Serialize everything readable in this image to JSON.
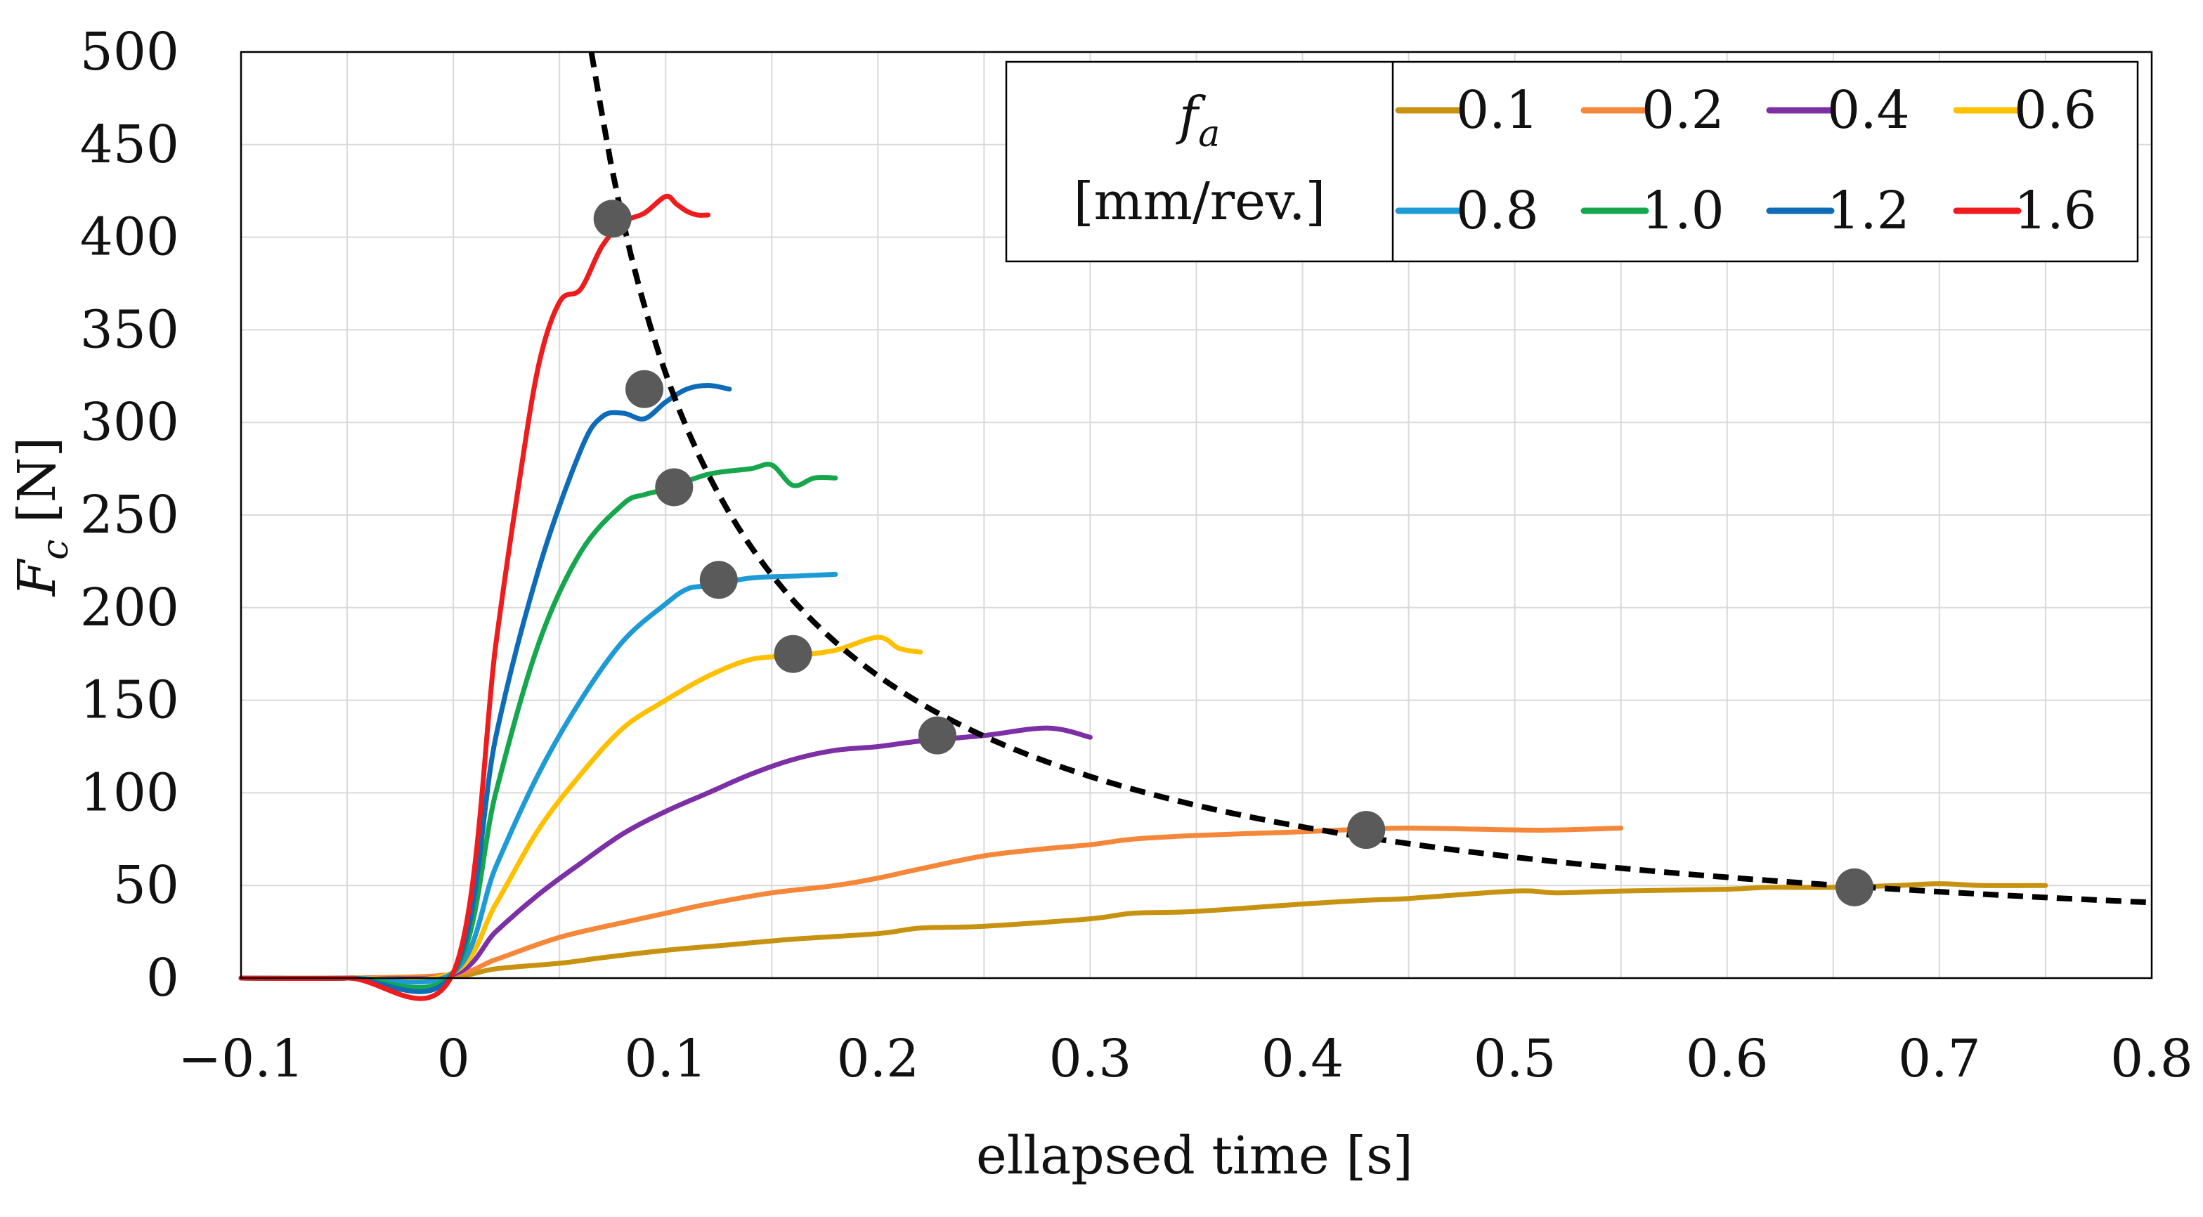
{
  "chart_data": {
    "type": "line",
    "title": "",
    "xlabel": "ellapsed time [s]",
    "ylabel": "F",
    "ylabel_sub": "c",
    "ylabel_unit": " [N]",
    "xlim": [
      -0.1,
      0.8
    ],
    "ylim": [
      0,
      500
    ],
    "xticks": [
      -0.1,
      0,
      0.1,
      0.2,
      0.3,
      0.4,
      0.5,
      0.6,
      0.7,
      0.8
    ],
    "xtick_labels": [
      "−0.1",
      "0",
      "0.1",
      "0.2",
      "0.3",
      "0.4",
      "0.5",
      "0.6",
      "0.7",
      "0.8"
    ],
    "yticks": [
      0,
      50,
      100,
      150,
      200,
      250,
      300,
      350,
      400,
      450,
      500
    ],
    "ytick_labels": [
      "0",
      "50",
      "100",
      "150",
      "200",
      "250",
      "300",
      "350",
      "400",
      "450",
      "500"
    ],
    "grid": true,
    "legend": {
      "placement": "top-right",
      "title_main": "f",
      "title_sub": "a",
      "title_unit": "[mm/rev.]"
    },
    "series": [
      {
        "name": "0.1",
        "color": "#c89211",
        "x": [
          -0.1,
          -0.05,
          0,
          0.02,
          0.05,
          0.07,
          0.1,
          0.13,
          0.16,
          0.2,
          0.22,
          0.25,
          0.3,
          0.32,
          0.35,
          0.4,
          0.43,
          0.45,
          0.5,
          0.52,
          0.55,
          0.6,
          0.62,
          0.65,
          0.68,
          0.7,
          0.72,
          0.75
        ],
        "y": [
          0,
          0,
          1,
          5,
          8,
          11,
          15,
          18,
          21,
          24,
          27,
          28,
          32,
          35,
          36,
          40,
          42,
          43,
          47,
          46,
          47,
          48,
          49,
          49,
          50,
          51,
          50,
          50
        ]
      },
      {
        "name": "0.2",
        "color": "#f5873a",
        "x": [
          -0.1,
          -0.05,
          0,
          0.02,
          0.05,
          0.08,
          0.1,
          0.12,
          0.15,
          0.18,
          0.2,
          0.22,
          0.25,
          0.28,
          0.3,
          0.32,
          0.35,
          0.4,
          0.42,
          0.45,
          0.5,
          0.52,
          0.55
        ],
        "y": [
          0,
          0,
          2,
          10,
          22,
          30,
          35,
          40,
          46,
          50,
          54,
          59,
          66,
          70,
          72,
          75,
          77,
          79,
          80,
          81,
          80,
          80,
          81
        ]
      },
      {
        "name": "0.4",
        "color": "#7d30a6",
        "x": [
          -0.1,
          -0.05,
          0,
          0.02,
          0.04,
          0.06,
          0.08,
          0.1,
          0.12,
          0.14,
          0.16,
          0.18,
          0.2,
          0.22,
          0.25,
          0.28,
          0.3
        ],
        "y": [
          0,
          0,
          2,
          25,
          45,
          62,
          78,
          90,
          100,
          110,
          118,
          123,
          125,
          128,
          131,
          135,
          130
        ]
      },
      {
        "name": "0.6",
        "color": "#ffc000",
        "x": [
          -0.1,
          -0.05,
          0,
          0.02,
          0.04,
          0.06,
          0.08,
          0.1,
          0.12,
          0.14,
          0.16,
          0.18,
          0.2,
          0.21,
          0.22
        ],
        "y": [
          0,
          0,
          3,
          40,
          80,
          110,
          135,
          150,
          163,
          172,
          174,
          177,
          184,
          178,
          176
        ]
      },
      {
        "name": "0.8",
        "color": "#1e9bd6",
        "x": [
          -0.1,
          -0.05,
          0,
          0.02,
          0.04,
          0.06,
          0.08,
          0.1,
          0.11,
          0.12,
          0.14,
          0.16,
          0.18
        ],
        "y": [
          0,
          0,
          3,
          60,
          110,
          150,
          182,
          202,
          210,
          212,
          216,
          217,
          218
        ]
      },
      {
        "name": "1.0",
        "color": "#16a64d",
        "x": [
          -0.1,
          -0.05,
          0,
          0.02,
          0.04,
          0.06,
          0.08,
          0.09,
          0.1,
          0.12,
          0.14,
          0.15,
          0.16,
          0.17,
          0.18
        ],
        "y": [
          0,
          0,
          3,
          100,
          180,
          230,
          256,
          261,
          264,
          272,
          275,
          277,
          266,
          270,
          270
        ]
      },
      {
        "name": "1.2",
        "color": "#0d6bb8",
        "x": [
          -0.1,
          -0.05,
          0,
          0.02,
          0.04,
          0.06,
          0.07,
          0.08,
          0.09,
          0.1,
          0.11,
          0.12,
          0.13
        ],
        "y": [
          0,
          0,
          3,
          130,
          220,
          285,
          303,
          305,
          302,
          311,
          318,
          320,
          318
        ]
      },
      {
        "name": "1.6",
        "color": "#ee1c1c",
        "x": [
          -0.1,
          -0.05,
          0,
          0.02,
          0.03,
          0.04,
          0.05,
          0.06,
          0.07,
          0.08,
          0.09,
          0.1,
          0.105,
          0.11,
          0.115,
          0.12
        ],
        "y": [
          0,
          0,
          3,
          180,
          260,
          330,
          365,
          372,
          395,
          408,
          413,
          422,
          418,
          414,
          412,
          412
        ]
      }
    ],
    "fit_curve": {
      "style": "dashed",
      "color": "#000000",
      "formula": "y = 32.65 / x",
      "x_from": 0.065,
      "x_to": 0.8
    },
    "markers": {
      "color": "#5a5a5a",
      "points": [
        {
          "x": 0.075,
          "y": 410
        },
        {
          "x": 0.09,
          "y": 318
        },
        {
          "x": 0.104,
          "y": 265
        },
        {
          "x": 0.125,
          "y": 215
        },
        {
          "x": 0.16,
          "y": 175
        },
        {
          "x": 0.228,
          "y": 131
        },
        {
          "x": 0.43,
          "y": 80
        },
        {
          "x": 0.66,
          "y": 49
        }
      ]
    }
  }
}
